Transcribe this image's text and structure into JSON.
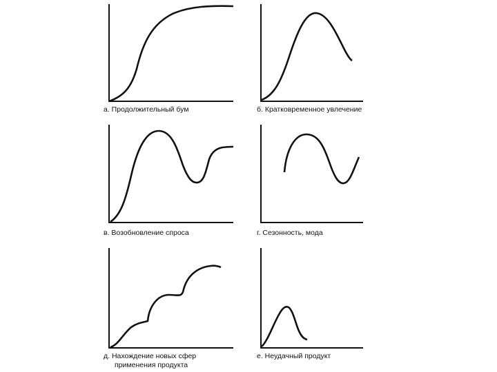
{
  "colors": {
    "background": "#ffffff",
    "ink": "#111111"
  },
  "panels": [
    {
      "id": "a",
      "caption": [
        "а. Продолжительный бум"
      ]
    },
    {
      "id": "b",
      "caption": [
        "б. Кратковременное увлечение"
      ]
    },
    {
      "id": "c",
      "caption": [
        "в. Возобновление спроса"
      ]
    },
    {
      "id": "d",
      "caption": [
        "г. Сезонность, мода"
      ]
    },
    {
      "id": "e",
      "caption": [
        "д. Нахождение новых сфер",
        "применения продукта"
      ]
    },
    {
      "id": "f",
      "caption": [
        "е. Неудачный продукт"
      ]
    }
  ]
}
